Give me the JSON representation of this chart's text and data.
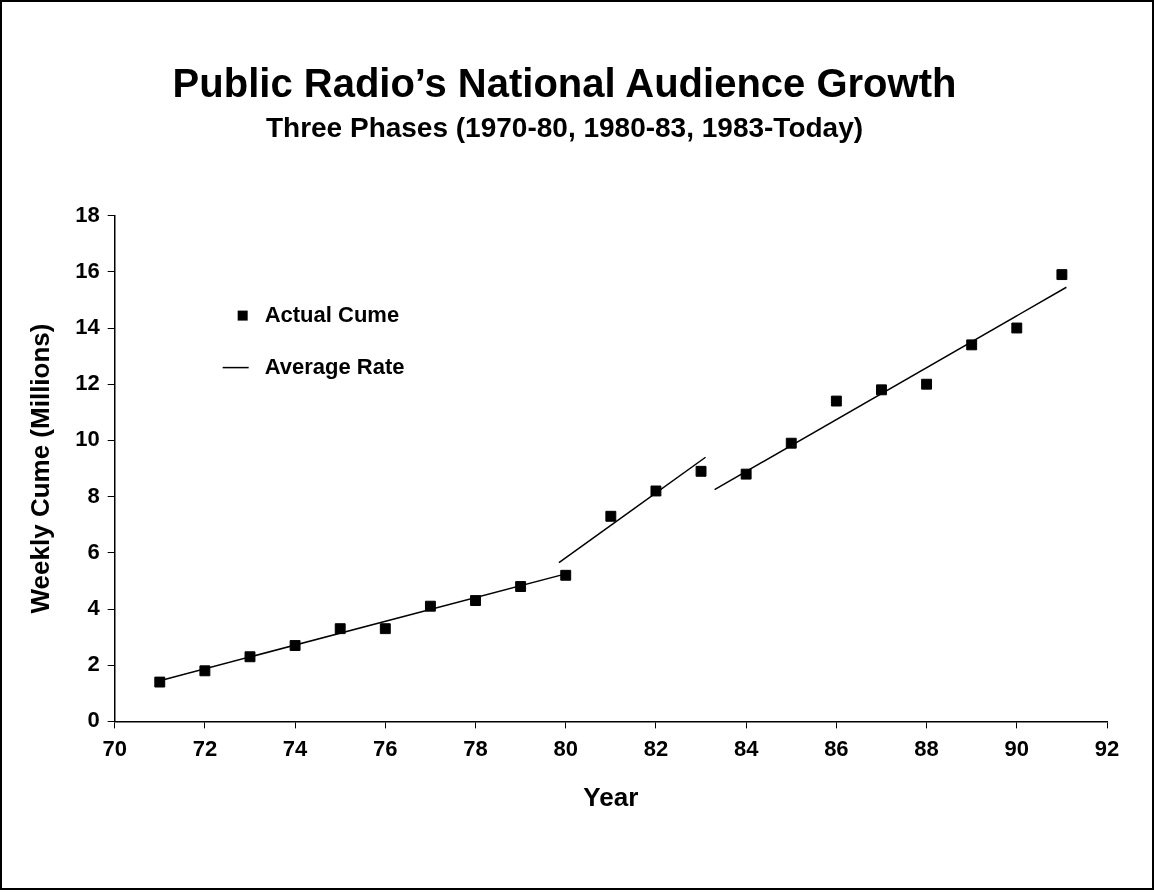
{
  "chart_data": {
    "type": "scatter",
    "title": "Public Radio’s National Audience Growth",
    "subtitle": "Three Phases (1970-80, 1980-83, 1983-Today)",
    "xlabel": "Year",
    "ylabel": "Weekly Cume (Millions)",
    "xlim": [
      70,
      92
    ],
    "xticks": [
      70,
      72,
      74,
      76,
      78,
      80,
      82,
      84,
      86,
      88,
      90,
      92
    ],
    "ylim": [
      0,
      18
    ],
    "yticks": [
      0,
      2,
      4,
      6,
      8,
      10,
      12,
      14,
      16,
      18
    ],
    "grid": false,
    "legend": "top left",
    "marker": "square",
    "series": [
      {
        "name": "Actual Cume",
        "color": "#000000",
        "x": [
          71,
          72,
          73,
          74,
          75,
          76,
          77,
          78,
          79,
          80,
          81,
          82,
          83,
          84,
          85,
          86,
          87,
          88,
          89,
          90,
          91
        ],
        "values": [
          1.4,
          1.8,
          2.3,
          2.7,
          3.3,
          3.3,
          4.1,
          4.3,
          4.8,
          5.2,
          7.3,
          8.2,
          8.9,
          8.8,
          9.9,
          11.4,
          11.8,
          12.0,
          13.4,
          14.0,
          15.9
        ]
      },
      {
        "name": "Average Rate",
        "type": "line",
        "marker": "none",
        "color": "#000000",
        "x": [
          71,
          80
        ],
        "values": [
          1.45,
          5.25
        ]
      },
      {
        "type": "line",
        "marker": "none",
        "color": "#000000",
        "x": [
          79.85,
          83.1
        ],
        "values": [
          5.65,
          9.4
        ]
      },
      {
        "type": "line",
        "marker": "none",
        "color": "#000000",
        "x": [
          83.3,
          91.1
        ],
        "values": [
          8.25,
          15.45
        ]
      }
    ]
  }
}
